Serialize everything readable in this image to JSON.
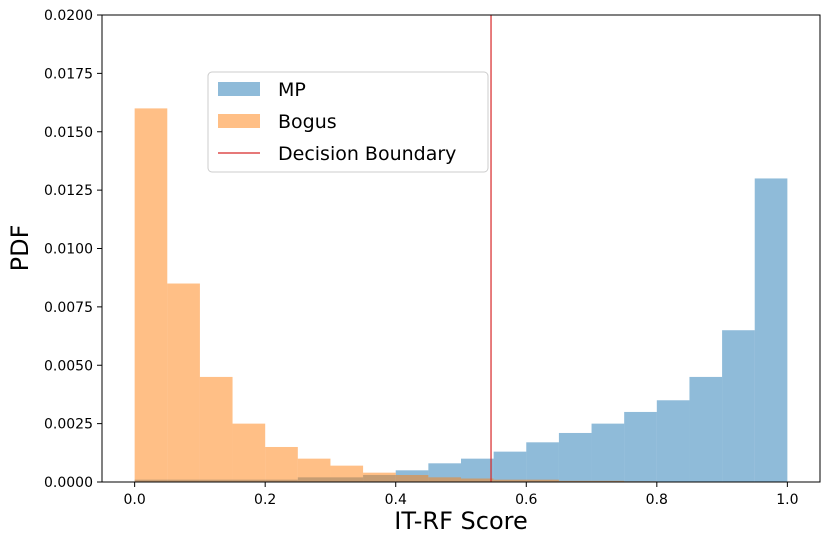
{
  "chart_data": {
    "type": "histogram",
    "title": "",
    "xlabel": "IT-RF Score",
    "ylabel": "PDF",
    "xlim": [
      -0.05,
      1.05
    ],
    "ylim": [
      0,
      0.02
    ],
    "x_ticks": [
      0.0,
      0.2,
      0.4,
      0.6,
      0.8,
      1.0
    ],
    "x_tick_labels": [
      "0.0",
      "0.2",
      "0.4",
      "0.6",
      "0.8",
      "1.0"
    ],
    "y_ticks": [
      0,
      0.0025,
      0.005,
      0.0075,
      0.01,
      0.0125,
      0.015,
      0.0175,
      0.02
    ],
    "y_tick_labels": [
      "0.0000",
      "0.0025",
      "0.0050",
      "0.0075",
      "0.0100",
      "0.0125",
      "0.0150",
      "0.0175",
      "0.0200"
    ],
    "grid": false,
    "legend_position": "upper-center-left",
    "bin_width": 0.05,
    "series": [
      {
        "name": "MP",
        "color": "#1f77b4",
        "opacity": 0.5,
        "bins": [
          0.0,
          0.05,
          0.1,
          0.15,
          0.2,
          0.25,
          0.3,
          0.35,
          0.4,
          0.45,
          0.5,
          0.55,
          0.6,
          0.65,
          0.7,
          0.75,
          0.8,
          0.85,
          0.9,
          0.95
        ],
        "values": [
          0.0001,
          0.0001,
          0.0001,
          0.0001,
          0.0001,
          0.0002,
          0.0002,
          0.0003,
          0.0005,
          0.0008,
          0.001,
          0.0013,
          0.0017,
          0.0021,
          0.0025,
          0.003,
          0.0035,
          0.0045,
          0.0065,
          0.013
        ]
      },
      {
        "name": "Bogus",
        "color": "#ff7f0e",
        "opacity": 0.5,
        "bins": [
          0.0,
          0.05,
          0.1,
          0.15,
          0.2,
          0.25,
          0.3,
          0.35,
          0.4,
          0.45,
          0.5,
          0.55,
          0.6,
          0.65,
          0.7,
          0.75,
          0.8,
          0.85,
          0.9,
          0.95
        ],
        "values": [
          0.016,
          0.0085,
          0.0045,
          0.0025,
          0.0015,
          0.001,
          0.0007,
          0.0004,
          0.0003,
          0.0002,
          0.00015,
          0.0001,
          0.0001,
          5e-05,
          5e-05,
          3e-05,
          2e-05,
          2e-05,
          1e-05,
          1e-05
        ]
      }
    ],
    "decision_boundary": {
      "name": "Decision Boundary",
      "x": 0.546,
      "color": "#d62728"
    }
  }
}
